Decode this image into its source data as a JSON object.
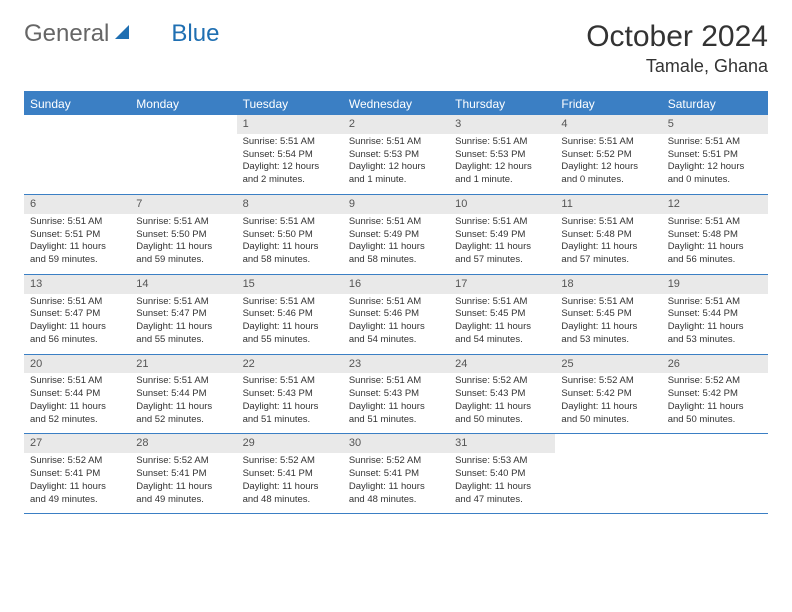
{
  "brand": {
    "part1": "General",
    "part2": "Blue"
  },
  "title": "October 2024",
  "location": "Tamale, Ghana",
  "colors": {
    "accent": "#3b7fc4",
    "header_text": "#ffffff",
    "daynum_bg": "#e9e9e9",
    "text": "#333333",
    "logo_gray": "#666666"
  },
  "day_headers": [
    "Sunday",
    "Monday",
    "Tuesday",
    "Wednesday",
    "Thursday",
    "Friday",
    "Saturday"
  ],
  "weeks": [
    [
      {
        "num": "",
        "lines": []
      },
      {
        "num": "",
        "lines": []
      },
      {
        "num": "1",
        "lines": [
          "Sunrise: 5:51 AM",
          "Sunset: 5:54 PM",
          "Daylight: 12 hours and 2 minutes."
        ]
      },
      {
        "num": "2",
        "lines": [
          "Sunrise: 5:51 AM",
          "Sunset: 5:53 PM",
          "Daylight: 12 hours and 1 minute."
        ]
      },
      {
        "num": "3",
        "lines": [
          "Sunrise: 5:51 AM",
          "Sunset: 5:53 PM",
          "Daylight: 12 hours and 1 minute."
        ]
      },
      {
        "num": "4",
        "lines": [
          "Sunrise: 5:51 AM",
          "Sunset: 5:52 PM",
          "Daylight: 12 hours and 0 minutes."
        ]
      },
      {
        "num": "5",
        "lines": [
          "Sunrise: 5:51 AM",
          "Sunset: 5:51 PM",
          "Daylight: 12 hours and 0 minutes."
        ]
      }
    ],
    [
      {
        "num": "6",
        "lines": [
          "Sunrise: 5:51 AM",
          "Sunset: 5:51 PM",
          "Daylight: 11 hours and 59 minutes."
        ]
      },
      {
        "num": "7",
        "lines": [
          "Sunrise: 5:51 AM",
          "Sunset: 5:50 PM",
          "Daylight: 11 hours and 59 minutes."
        ]
      },
      {
        "num": "8",
        "lines": [
          "Sunrise: 5:51 AM",
          "Sunset: 5:50 PM",
          "Daylight: 11 hours and 58 minutes."
        ]
      },
      {
        "num": "9",
        "lines": [
          "Sunrise: 5:51 AM",
          "Sunset: 5:49 PM",
          "Daylight: 11 hours and 58 minutes."
        ]
      },
      {
        "num": "10",
        "lines": [
          "Sunrise: 5:51 AM",
          "Sunset: 5:49 PM",
          "Daylight: 11 hours and 57 minutes."
        ]
      },
      {
        "num": "11",
        "lines": [
          "Sunrise: 5:51 AM",
          "Sunset: 5:48 PM",
          "Daylight: 11 hours and 57 minutes."
        ]
      },
      {
        "num": "12",
        "lines": [
          "Sunrise: 5:51 AM",
          "Sunset: 5:48 PM",
          "Daylight: 11 hours and 56 minutes."
        ]
      }
    ],
    [
      {
        "num": "13",
        "lines": [
          "Sunrise: 5:51 AM",
          "Sunset: 5:47 PM",
          "Daylight: 11 hours and 56 minutes."
        ]
      },
      {
        "num": "14",
        "lines": [
          "Sunrise: 5:51 AM",
          "Sunset: 5:47 PM",
          "Daylight: 11 hours and 55 minutes."
        ]
      },
      {
        "num": "15",
        "lines": [
          "Sunrise: 5:51 AM",
          "Sunset: 5:46 PM",
          "Daylight: 11 hours and 55 minutes."
        ]
      },
      {
        "num": "16",
        "lines": [
          "Sunrise: 5:51 AM",
          "Sunset: 5:46 PM",
          "Daylight: 11 hours and 54 minutes."
        ]
      },
      {
        "num": "17",
        "lines": [
          "Sunrise: 5:51 AM",
          "Sunset: 5:45 PM",
          "Daylight: 11 hours and 54 minutes."
        ]
      },
      {
        "num": "18",
        "lines": [
          "Sunrise: 5:51 AM",
          "Sunset: 5:45 PM",
          "Daylight: 11 hours and 53 minutes."
        ]
      },
      {
        "num": "19",
        "lines": [
          "Sunrise: 5:51 AM",
          "Sunset: 5:44 PM",
          "Daylight: 11 hours and 53 minutes."
        ]
      }
    ],
    [
      {
        "num": "20",
        "lines": [
          "Sunrise: 5:51 AM",
          "Sunset: 5:44 PM",
          "Daylight: 11 hours and 52 minutes."
        ]
      },
      {
        "num": "21",
        "lines": [
          "Sunrise: 5:51 AM",
          "Sunset: 5:44 PM",
          "Daylight: 11 hours and 52 minutes."
        ]
      },
      {
        "num": "22",
        "lines": [
          "Sunrise: 5:51 AM",
          "Sunset: 5:43 PM",
          "Daylight: 11 hours and 51 minutes."
        ]
      },
      {
        "num": "23",
        "lines": [
          "Sunrise: 5:51 AM",
          "Sunset: 5:43 PM",
          "Daylight: 11 hours and 51 minutes."
        ]
      },
      {
        "num": "24",
        "lines": [
          "Sunrise: 5:52 AM",
          "Sunset: 5:43 PM",
          "Daylight: 11 hours and 50 minutes."
        ]
      },
      {
        "num": "25",
        "lines": [
          "Sunrise: 5:52 AM",
          "Sunset: 5:42 PM",
          "Daylight: 11 hours and 50 minutes."
        ]
      },
      {
        "num": "26",
        "lines": [
          "Sunrise: 5:52 AM",
          "Sunset: 5:42 PM",
          "Daylight: 11 hours and 50 minutes."
        ]
      }
    ],
    [
      {
        "num": "27",
        "lines": [
          "Sunrise: 5:52 AM",
          "Sunset: 5:41 PM",
          "Daylight: 11 hours and 49 minutes."
        ]
      },
      {
        "num": "28",
        "lines": [
          "Sunrise: 5:52 AM",
          "Sunset: 5:41 PM",
          "Daylight: 11 hours and 49 minutes."
        ]
      },
      {
        "num": "29",
        "lines": [
          "Sunrise: 5:52 AM",
          "Sunset: 5:41 PM",
          "Daylight: 11 hours and 48 minutes."
        ]
      },
      {
        "num": "30",
        "lines": [
          "Sunrise: 5:52 AM",
          "Sunset: 5:41 PM",
          "Daylight: 11 hours and 48 minutes."
        ]
      },
      {
        "num": "31",
        "lines": [
          "Sunrise: 5:53 AM",
          "Sunset: 5:40 PM",
          "Daylight: 11 hours and 47 minutes."
        ]
      },
      {
        "num": "",
        "lines": []
      },
      {
        "num": "",
        "lines": []
      }
    ]
  ]
}
